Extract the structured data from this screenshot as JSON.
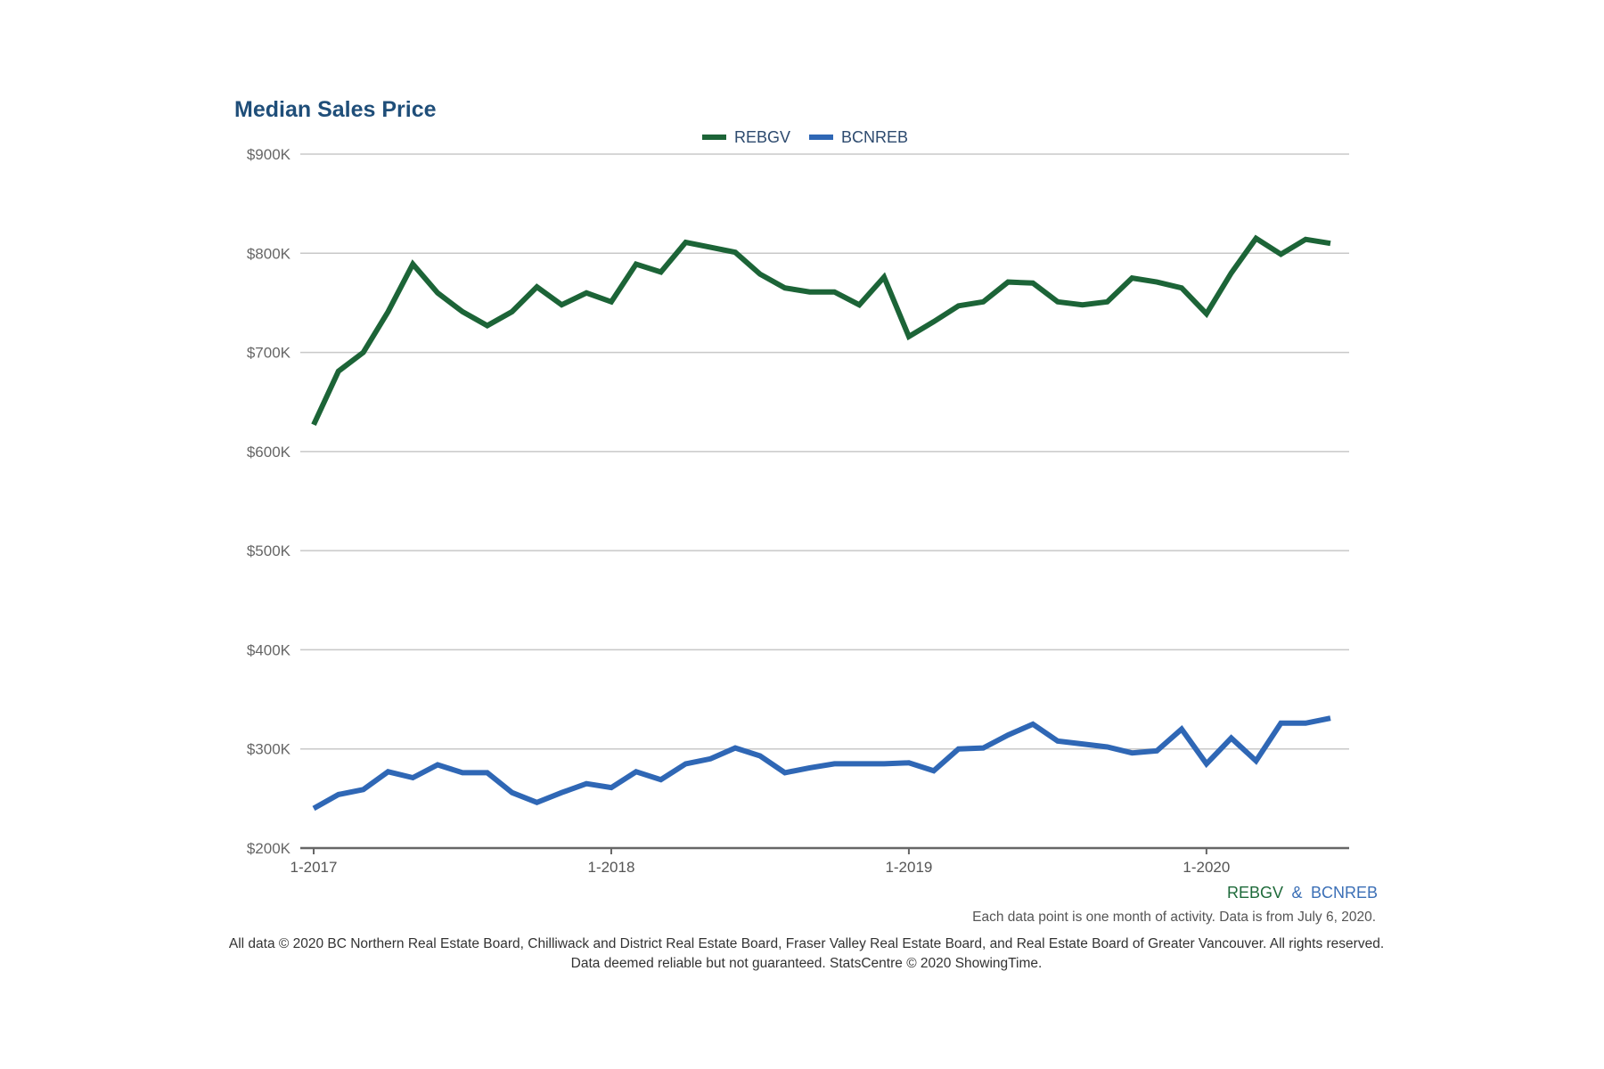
{
  "colors": {
    "rebgv": "#1c6437",
    "bcnreb": "#2f67b5",
    "title": "#1f4e79",
    "grid": "#c8c8c8",
    "axis": "#666666"
  },
  "chart_data": {
    "type": "line",
    "title": "Median Sales Price",
    "xlabel": "",
    "ylabel": "",
    "ylim": [
      200000,
      900000
    ],
    "grid": true,
    "legend_position": "top-center",
    "y_ticks": [
      200000,
      300000,
      400000,
      500000,
      600000,
      700000,
      800000,
      900000
    ],
    "y_tick_labels": [
      "$200K",
      "$300K",
      "$400K",
      "$500K",
      "$600K",
      "$700K",
      "$800K",
      "$900K"
    ],
    "x_tick_months": [
      0,
      12,
      24,
      36
    ],
    "x_tick_labels": [
      "1-2017",
      "1-2018",
      "1-2019",
      "1-2020"
    ],
    "x": [
      "1-2017",
      "2-2017",
      "3-2017",
      "4-2017",
      "5-2017",
      "6-2017",
      "7-2017",
      "8-2017",
      "9-2017",
      "10-2017",
      "11-2017",
      "12-2017",
      "1-2018",
      "2-2018",
      "3-2018",
      "4-2018",
      "5-2018",
      "6-2018",
      "7-2018",
      "8-2018",
      "9-2018",
      "10-2018",
      "11-2018",
      "12-2018",
      "1-2019",
      "2-2019",
      "3-2019",
      "4-2019",
      "5-2019",
      "6-2019",
      "7-2019",
      "8-2019",
      "9-2019",
      "10-2019",
      "11-2019",
      "12-2019",
      "1-2020",
      "2-2020",
      "3-2020",
      "4-2020",
      "5-2020",
      "6-2020"
    ],
    "series": [
      {
        "name": "REBGV",
        "values": [
          627000,
          681000,
          700000,
          741000,
          789000,
          760000,
          741000,
          727000,
          741000,
          766000,
          748000,
          760000,
          751000,
          789000,
          781000,
          811000,
          806000,
          801000,
          779000,
          765000,
          761000,
          761000,
          748000,
          776000,
          716000,
          731000,
          747000,
          751000,
          771000,
          770000,
          751000,
          748000,
          751000,
          775000,
          771000,
          765000,
          739000,
          780000,
          815000,
          799000,
          814000,
          810000
        ]
      },
      {
        "name": "BCNREB",
        "values": [
          240000,
          254000,
          259000,
          277000,
          271000,
          284000,
          276000,
          276000,
          256000,
          246000,
          256000,
          265000,
          261000,
          277000,
          269000,
          285000,
          290000,
          301000,
          293000,
          276000,
          281000,
          285000,
          285000,
          285000,
          286000,
          278000,
          300000,
          301000,
          314000,
          325000,
          308000,
          305000,
          302000,
          296000,
          298000,
          320000,
          285000,
          311000,
          288000,
          326000,
          326000,
          331000
        ]
      }
    ]
  },
  "legend": {
    "items": [
      {
        "label": "REBGV"
      },
      {
        "label": "BCNREB"
      }
    ]
  },
  "source_label": {
    "part1": "REBGV",
    "separator": "&",
    "part2": "BCNREB"
  },
  "note": "Each data point is one month of activity. Data is from July 6, 2020.",
  "footer": {
    "line1": "All data © 2020 BC Northern Real Estate Board, Chilliwack and District Real Estate Board, Fraser Valley Real Estate Board, and Real Estate Board of Greater Vancouver. All rights reserved.",
    "line2": "Data deemed reliable but not guaranteed. StatsCentre © 2020 ShowingTime."
  }
}
